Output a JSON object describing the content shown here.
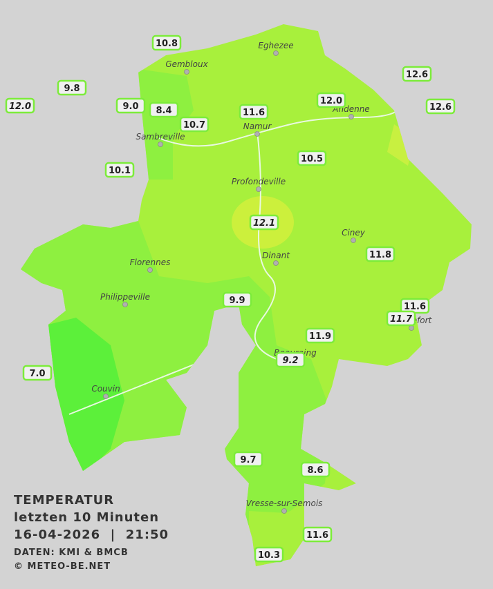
{
  "legend": {
    "title": "TEMPERATUR",
    "subtitle": "letzten 10 Minuten",
    "datetime": "16-04-2026  |  21:50",
    "source": "DATEN: KMI & BMCB",
    "copyright": "© METEO-BE.NET"
  },
  "towns": [
    "Eghezee",
    "Gembloux",
    "Andenne",
    "Namur",
    "Sambreville",
    "Profondeville",
    "Ciney",
    "Dinant",
    "Florennes",
    "Philippeville",
    "Rochefort",
    "Beauraing",
    "Couvin",
    "Vresse-sur-Semois"
  ],
  "stations": [
    {
      "label": "10.8"
    },
    {
      "label": "12.6"
    },
    {
      "label": "9.8"
    },
    {
      "label": "12.0",
      "italic": true
    },
    {
      "label": "9.0"
    },
    {
      "label": "8.4"
    },
    {
      "label": "11.6"
    },
    {
      "label": "12.0"
    },
    {
      "label": "12.6"
    },
    {
      "label": "10.7"
    },
    {
      "label": "10.1"
    },
    {
      "label": "10.5"
    },
    {
      "label": "12.1",
      "italic": true
    },
    {
      "label": "11.8"
    },
    {
      "label": "9.9"
    },
    {
      "label": "11.6"
    },
    {
      "label": "11.7",
      "italic": true
    },
    {
      "label": "11.9"
    },
    {
      "label": "9.2",
      "italic": true
    },
    {
      "label": "7.0"
    },
    {
      "label": "9.7"
    },
    {
      "label": "8.6"
    },
    {
      "label": "11.6"
    },
    {
      "label": "10.3"
    }
  ]
}
